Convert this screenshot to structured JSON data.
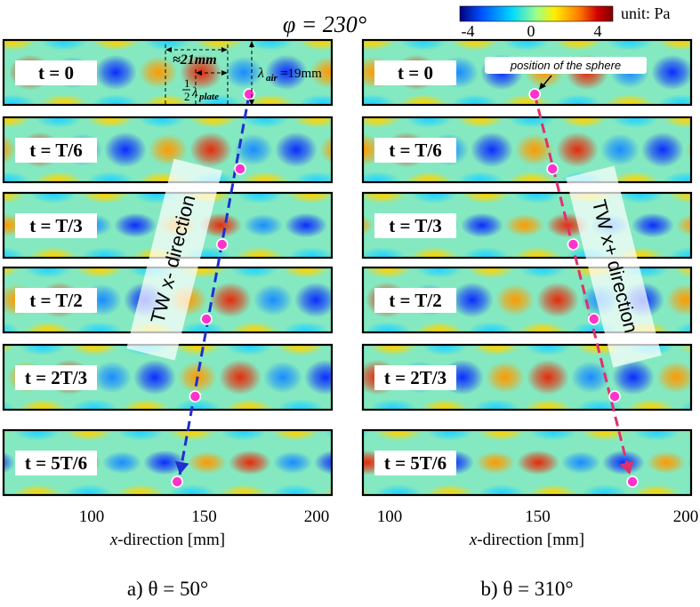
{
  "title": "φ = 230°",
  "colorbar": {
    "unit_label": "unit: Pa",
    "ticks": [
      "-4",
      "0",
      "4"
    ],
    "colors": [
      "#00007f",
      "#0050ff",
      "#00d8ff",
      "#7cff7a",
      "#ffee00",
      "#ff7a00",
      "#c00000",
      "#7f0000"
    ]
  },
  "panels": [
    {
      "id": "a",
      "caption": "a) θ = 50°",
      "xlabel_italic": "x",
      "xlabel_rest": "-direction [mm]",
      "xticks": [
        "100",
        "150",
        "200"
      ],
      "direction_text": "TW x- direction",
      "arrow_color": "#1f2fd0",
      "sphere_x_mm": [
        170,
        166,
        158,
        151,
        146,
        138
      ],
      "frames": [
        "t = 0",
        "t = T/6",
        "t = T/3",
        "t = T/2",
        "t = 2T/3",
        "t = 5T/6"
      ],
      "annotations": {
        "dist": "≈21mm",
        "half_frac_num": "1",
        "half_frac_den": "2",
        "half_lambda": "λ",
        "half_sub": "plate",
        "lambda": "λ",
        "lambda_sub": "air",
        "lambda_val": "=19mm"
      }
    },
    {
      "id": "b",
      "caption": "b) θ = 310°",
      "xlabel_italic": "x",
      "xlabel_rest": "-direction [mm]",
      "xticks": [
        "100",
        "150",
        "200"
      ],
      "direction_text": "TW x+ direction",
      "arrow_color": "#e0306e",
      "sphere_x_mm": [
        149,
        155,
        162,
        169,
        176,
        182
      ],
      "frames": [
        "t = 0",
        "t = T/6",
        "t = T/3",
        "t = T/2",
        "t = 2T/3",
        "t = 5T/6"
      ],
      "annotations": {
        "sphere_label": "position of the sphere"
      }
    }
  ]
}
